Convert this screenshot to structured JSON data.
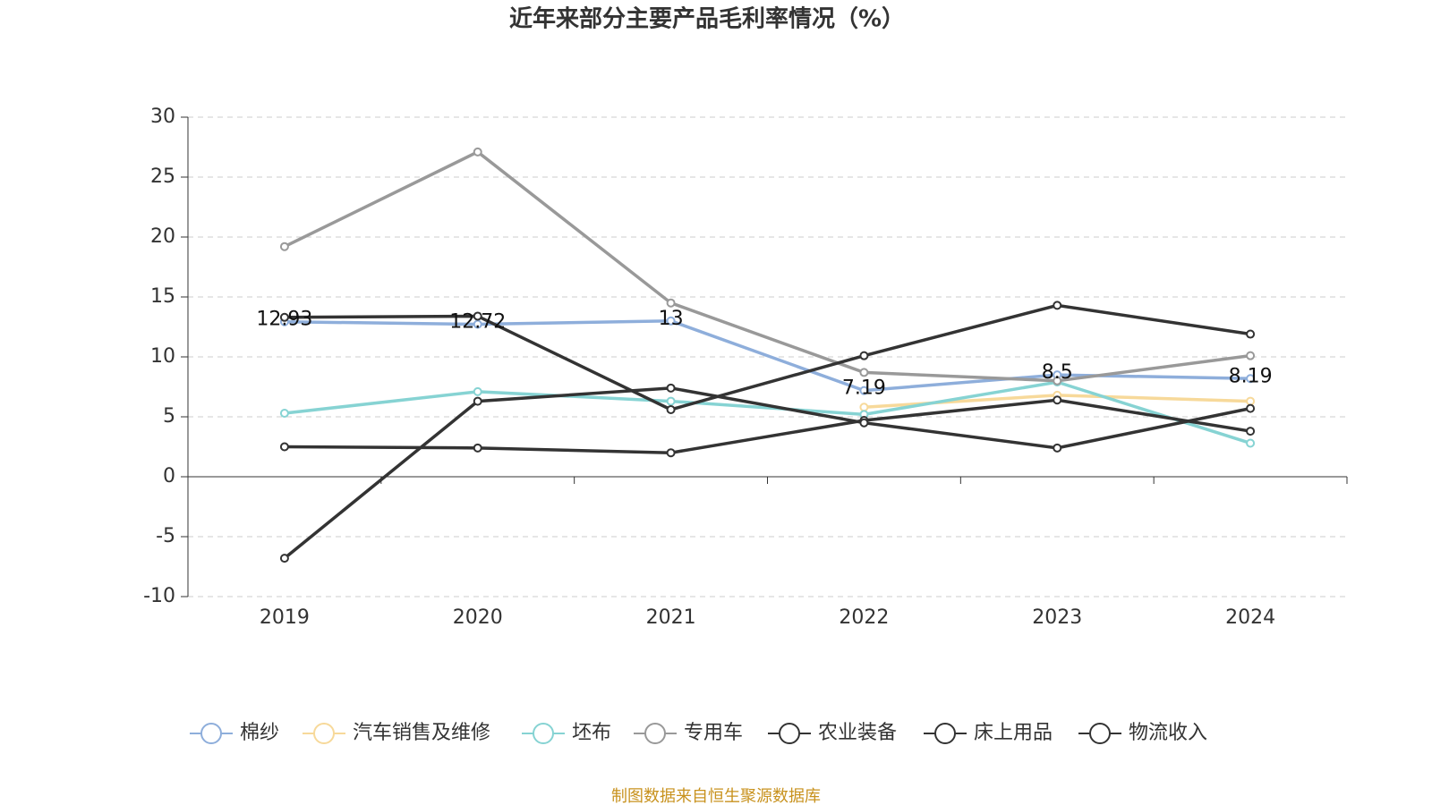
{
  "chart_data": {
    "type": "line",
    "title": "近年来部分主要产品毛利率情况（%）",
    "source": "制图数据来自恒生聚源数据库",
    "categories": [
      "2019",
      "2020",
      "2021",
      "2022",
      "2023",
      "2024"
    ],
    "ylim": [
      -10,
      30
    ],
    "yticks": [
      -10,
      -5,
      0,
      5,
      10,
      15,
      20,
      25,
      30
    ],
    "grid": true,
    "series": [
      {
        "name": "棉纱",
        "color": "#8eaedb",
        "values": [
          12.93,
          12.72,
          13,
          7.19,
          8.5,
          8.19
        ],
        "show_labels": true
      },
      {
        "name": "汽车销售及维修",
        "color": "#f7d99a",
        "values": [
          null,
          null,
          null,
          5.8,
          6.8,
          6.3
        ]
      },
      {
        "name": "坯布",
        "color": "#86d3d3",
        "values": [
          5.3,
          7.1,
          6.3,
          5.2,
          7.9,
          2.8
        ]
      },
      {
        "name": "专用车",
        "color": "#999999",
        "values": [
          19.2,
          27.1,
          14.5,
          8.7,
          8.0,
          10.1
        ]
      },
      {
        "name": "农业装备",
        "color": "#333333",
        "values": [
          13.3,
          13.4,
          5.6,
          10.1,
          14.3,
          11.9
        ]
      },
      {
        "name": "床上用品",
        "color": "#333333",
        "values": [
          2.5,
          2.4,
          2.0,
          4.7,
          6.4,
          3.8
        ]
      },
      {
        "name": "物流收入",
        "color": "#333333",
        "values": [
          -6.8,
          6.3,
          7.4,
          4.5,
          2.4,
          5.7
        ]
      }
    ]
  }
}
